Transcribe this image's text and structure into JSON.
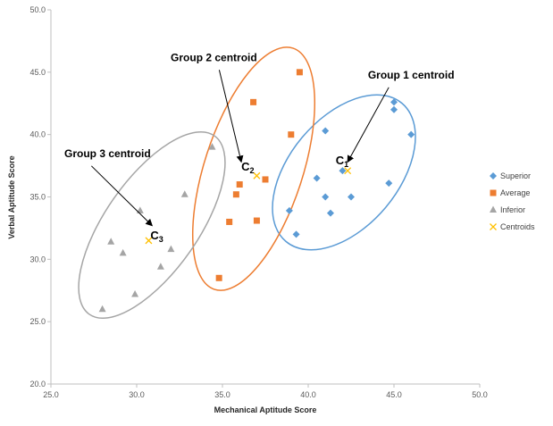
{
  "chart_data": {
    "type": "scatter",
    "title": "",
    "xlabel": "Mechanical Aptitude Score",
    "ylabel": "Verbal Aptitude Score",
    "xlim": [
      25.0,
      50.0
    ],
    "ylim": [
      20.0,
      50.0
    ],
    "x_ticks": [
      "25.0",
      "30.0",
      "35.0",
      "40.0",
      "45.0",
      "50.0"
    ],
    "y_ticks": [
      "20.0",
      "25.0",
      "30.0",
      "35.0",
      "40.0",
      "45.0",
      "50.0"
    ],
    "grid": false,
    "legend_position": "right",
    "series": [
      {
        "name": "Superior",
        "marker": "diamond",
        "color": "#5B9BD5",
        "points": [
          {
            "x": 45.0,
            "y": 42.6
          },
          {
            "x": 45.0,
            "y": 42.0
          },
          {
            "x": 46.0,
            "y": 40.0
          },
          {
            "x": 41.0,
            "y": 40.3
          },
          {
            "x": 40.5,
            "y": 36.5
          },
          {
            "x": 42.0,
            "y": 37.1
          },
          {
            "x": 44.7,
            "y": 36.1
          },
          {
            "x": 41.0,
            "y": 35.0
          },
          {
            "x": 42.5,
            "y": 35.0
          },
          {
            "x": 41.3,
            "y": 33.7
          },
          {
            "x": 38.9,
            "y": 33.9
          },
          {
            "x": 39.3,
            "y": 32.0
          }
        ]
      },
      {
        "name": "Average",
        "marker": "square",
        "color": "#ED7D31",
        "points": [
          {
            "x": 39.5,
            "y": 45.0
          },
          {
            "x": 36.8,
            "y": 42.6
          },
          {
            "x": 39.0,
            "y": 40.0
          },
          {
            "x": 36.0,
            "y": 36.0
          },
          {
            "x": 37.5,
            "y": 36.4
          },
          {
            "x": 35.8,
            "y": 35.2
          },
          {
            "x": 35.4,
            "y": 33.0
          },
          {
            "x": 37.0,
            "y": 33.1
          },
          {
            "x": 34.8,
            "y": 28.5
          }
        ]
      },
      {
        "name": "Inferior",
        "marker": "triangle",
        "color": "#A5A5A5",
        "points": [
          {
            "x": 34.4,
            "y": 39.0
          },
          {
            "x": 32.8,
            "y": 35.2
          },
          {
            "x": 30.2,
            "y": 33.9
          },
          {
            "x": 28.5,
            "y": 31.4
          },
          {
            "x": 29.2,
            "y": 30.5
          },
          {
            "x": 32.0,
            "y": 30.8
          },
          {
            "x": 31.4,
            "y": 29.4
          },
          {
            "x": 29.9,
            "y": 27.2
          },
          {
            "x": 28.0,
            "y": 26.0
          }
        ]
      },
      {
        "name": "Centroids",
        "marker": "x",
        "color": "#FFC000",
        "points": [
          {
            "x": 42.3,
            "y": 37.1
          },
          {
            "x": 37.0,
            "y": 36.7
          },
          {
            "x": 30.7,
            "y": 31.5
          }
        ]
      }
    ],
    "centroid_labels": [
      {
        "base": "C",
        "sub": "1",
        "x": 41.6,
        "y": 37.6
      },
      {
        "base": "C",
        "sub": "2",
        "x": 36.1,
        "y": 37.1
      },
      {
        "base": "C",
        "sub": "3",
        "x": 30.8,
        "y": 31.6
      }
    ],
    "annotations": [
      {
        "text": "Group 1 centroid",
        "x": 46.0,
        "y": 44.5,
        "arrow_to": [
          42.3,
          37.8
        ],
        "color": "#000000"
      },
      {
        "text": "Group 2 centroid",
        "x": 34.5,
        "y": 45.9,
        "arrow_to": [
          36.1,
          37.8
        ],
        "color": "#000000"
      },
      {
        "text": "Group 3 centroid",
        "x": 28.3,
        "y": 38.2,
        "arrow_to": [
          30.9,
          32.7
        ],
        "color": "#000000"
      }
    ],
    "group_ellipses": [
      {
        "group": "Superior",
        "color": "#5B9BD5"
      },
      {
        "group": "Average",
        "color": "#ED7D31"
      },
      {
        "group": "Inferior",
        "color": "#A5A5A5"
      }
    ]
  }
}
